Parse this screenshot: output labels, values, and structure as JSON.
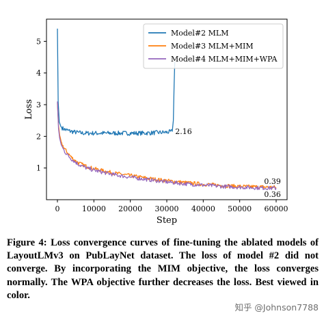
{
  "chart_data": {
    "type": "line",
    "xlabel": "Step",
    "ylabel": "Loss",
    "xlim": [
      -3000,
      63000
    ],
    "ylim": [
      0,
      5.7
    ],
    "xticks": [
      0,
      10000,
      20000,
      30000,
      40000,
      50000,
      60000
    ],
    "yticks": [
      1,
      2,
      3,
      4,
      5
    ],
    "grid": false,
    "legend_position": "top-right",
    "series": [
      {
        "name": "Model#2 MLM",
        "color": "#1f77b4",
        "x": [
          0,
          200,
          500,
          1000,
          1500,
          2000,
          3000,
          4000,
          5000,
          7000,
          10000,
          13000,
          16000,
          20000,
          23000,
          26000,
          28000,
          30000,
          31000,
          31500,
          31800,
          32000,
          32200
        ],
        "y": [
          5.4,
          3.1,
          2.45,
          2.3,
          2.25,
          2.22,
          2.18,
          2.15,
          2.13,
          2.1,
          2.1,
          2.1,
          2.1,
          2.1,
          2.1,
          2.11,
          2.12,
          2.13,
          2.14,
          2.16,
          2.5,
          3.6,
          4.35
        ]
      },
      {
        "name": "Model#3 MLM+MIM",
        "color": "#ff7f0e",
        "x": [
          0,
          300,
          600,
          1000,
          1500,
          2000,
          3000,
          4000,
          5000,
          6000,
          8000,
          10000,
          13000,
          16000,
          20000,
          25000,
          30000,
          35000,
          40000,
          45000,
          50000,
          55000,
          60000
        ],
        "y": [
          3.05,
          2.35,
          2.05,
          1.85,
          1.7,
          1.6,
          1.45,
          1.32,
          1.22,
          1.15,
          1.05,
          0.98,
          0.9,
          0.83,
          0.76,
          0.67,
          0.6,
          0.54,
          0.49,
          0.45,
          0.42,
          0.405,
          0.39
        ]
      },
      {
        "name": "Model#4 MLM+MIM+WPA",
        "color": "#9467bd",
        "x": [
          0,
          300,
          600,
          1000,
          1500,
          2000,
          3000,
          4000,
          5000,
          6000,
          8000,
          10000,
          13000,
          16000,
          20000,
          25000,
          30000,
          35000,
          40000,
          45000,
          50000,
          55000,
          60000
        ],
        "y": [
          3.1,
          2.25,
          1.95,
          1.75,
          1.62,
          1.52,
          1.38,
          1.27,
          1.18,
          1.1,
          1.0,
          0.93,
          0.85,
          0.78,
          0.71,
          0.63,
          0.56,
          0.5,
          0.46,
          0.42,
          0.395,
          0.375,
          0.36
        ]
      }
    ],
    "annotations": [
      {
        "text": "2.16",
        "x": 32300,
        "y": 2.16
      },
      {
        "text": "0.39",
        "x": 56700,
        "y": 0.58
      },
      {
        "text": "0.36",
        "x": 56700,
        "y": 0.17
      }
    ]
  },
  "caption": "Figure 4: Loss convergence curves of fine-tuning the ablated models of LayoutLMv3 on PubLayNet dataset. The loss of model #2 did not converge. By incorporating the MIM objective, the loss converges normally. The WPA objective further decreases the loss. Best viewed in color.",
  "watermark": "知乎 @Johnson7788"
}
